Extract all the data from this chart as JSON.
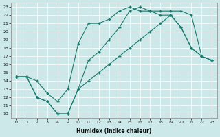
{
  "xlabel": "Humidex (Indice chaleur)",
  "bg_color": "#cce8e8",
  "line_color": "#1a7a6e",
  "grid_color": "#b0d8d8",
  "ylim": [
    9.5,
    23.5
  ],
  "yticks": [
    10,
    11,
    12,
    13,
    14,
    15,
    16,
    17,
    18,
    19,
    20,
    21,
    22,
    23
  ],
  "xtick_labels": [
    "0",
    "1",
    "2",
    "3",
    "4",
    "9",
    "10",
    "11",
    "12",
    "13",
    "14",
    "15",
    "16",
    "17",
    "18",
    "19",
    "20",
    "21",
    "22",
    "23"
  ],
  "lines": [
    {
      "xi": [
        0,
        1,
        2,
        3,
        4,
        5,
        6,
        7,
        8,
        9,
        10,
        11,
        12,
        13,
        14,
        15,
        16,
        17,
        18,
        19
      ],
      "y": [
        14.5,
        14.5,
        14.0,
        12.5,
        11.5,
        13.0,
        18.5,
        21.0,
        21.0,
        21.5,
        22.5,
        23.0,
        22.5,
        22.5,
        22.5,
        22.5,
        22.5,
        22.0,
        17.0,
        16.5
      ]
    },
    {
      "xi": [
        0,
        1,
        2,
        3,
        4,
        5,
        6,
        7,
        8,
        9,
        10,
        11,
        12,
        13,
        14,
        15,
        16,
        17,
        18,
        19
      ],
      "y": [
        14.5,
        14.5,
        12.0,
        11.5,
        10.0,
        10.0,
        13.0,
        16.5,
        17.5,
        19.0,
        20.5,
        22.5,
        23.0,
        22.5,
        22.0,
        22.0,
        20.5,
        18.0,
        17.0,
        16.5
      ]
    },
    {
      "xi": [
        0,
        1,
        2,
        3,
        4,
        5,
        6,
        7,
        8,
        9,
        10,
        11,
        12,
        13,
        14,
        15,
        16,
        17,
        18,
        19
      ],
      "y": [
        14.5,
        14.5,
        12.0,
        11.5,
        10.0,
        10.0,
        13.0,
        14.0,
        15.0,
        16.0,
        17.0,
        18.0,
        19.0,
        20.0,
        21.0,
        22.0,
        20.5,
        18.0,
        17.0,
        16.5
      ]
    }
  ]
}
